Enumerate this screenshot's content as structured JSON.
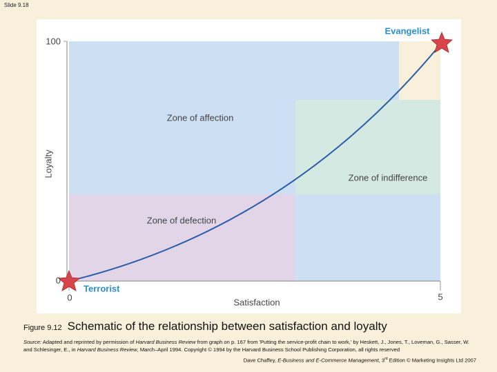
{
  "slide_label": "Slide 9.18",
  "figure": {
    "y_axis_label": "Loyalty",
    "x_axis_label": "Satisfaction",
    "y_tick_labels": [
      "0",
      "100"
    ],
    "x_tick_labels": [
      "0",
      "5"
    ],
    "zones": [
      "Zone of affection",
      "Zone of indifference",
      "Zone of defection"
    ],
    "top_label": "Evangelist",
    "bottom_label": "Terrorist"
  },
  "caption": {
    "number": "Figure 9.12",
    "text": "Schematic of the relationship between satisfaction and loyalty"
  },
  "source": {
    "parts": [
      "Source:",
      " Adapted and reprinted by permission of ",
      "Harvard Business Review",
      " from graph on p. 167 from 'Putting the service-profit chain to work,' by Heskett, J., Jones, T., Loveman, G., Sasser, W. and Schlesinger, E., in ",
      "Harvard Business Review",
      ", March–April 1994. Copyright © 1994 by the Harvard Business School Publishing Corporation, all rights reserved"
    ]
  },
  "footer": {
    "parts": [
      "Dave Chaffey, ",
      "E-Business and E-Commerce Management,",
      " 3",
      "rd",
      " Edition © Marketing Insights Ltd 2007"
    ]
  }
}
